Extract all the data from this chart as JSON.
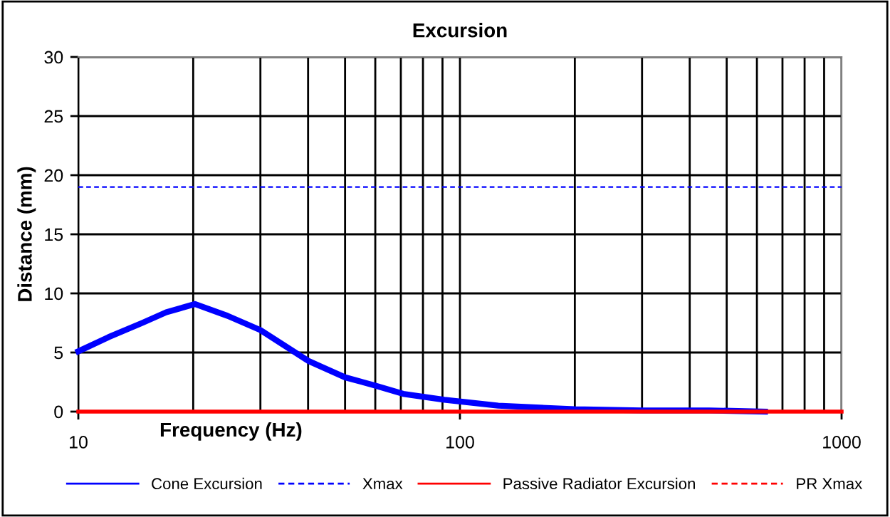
{
  "chart_data": {
    "type": "line",
    "title": "Excursion",
    "xlabel": "Frequency (Hz)",
    "ylabel": "Distance (mm)",
    "log": "x",
    "xlim": [
      10,
      1000
    ],
    "xticks": [
      10,
      100,
      1000
    ],
    "ylim": [
      0,
      30
    ],
    "yticks": [
      0,
      5,
      10,
      15,
      20,
      25,
      30
    ],
    "grid": true,
    "legend": "bottom",
    "marker": "none",
    "series": [
      {
        "name": "Cone Excursion",
        "color": "#0000ff",
        "line_style": "solid",
        "x": [
          10,
          12,
          14.7,
          17,
          20.2,
          24.6,
          30,
          40,
          50,
          60,
          71,
          91,
          126,
          200,
          300,
          450,
          630
        ],
        "values": [
          5.1,
          6.3,
          7.5,
          8.4,
          9.1,
          8.1,
          6.9,
          4.3,
          2.9,
          2.2,
          1.5,
          1.0,
          0.5,
          0.2,
          0.1,
          0.1,
          0
        ]
      },
      {
        "name": "Xmax",
        "color": "#0000ff",
        "line_style": "dashed",
        "x": [
          10,
          1000
        ],
        "values": [
          19,
          19
        ]
      },
      {
        "name": "Passive Radiator Excursion",
        "color": "#ff0000",
        "line_style": "solid",
        "x": [
          10,
          1000
        ],
        "values": [
          0,
          0
        ]
      },
      {
        "name": "PR Xmax",
        "color": "#ff0000",
        "line_style": "dashed"
      }
    ]
  }
}
